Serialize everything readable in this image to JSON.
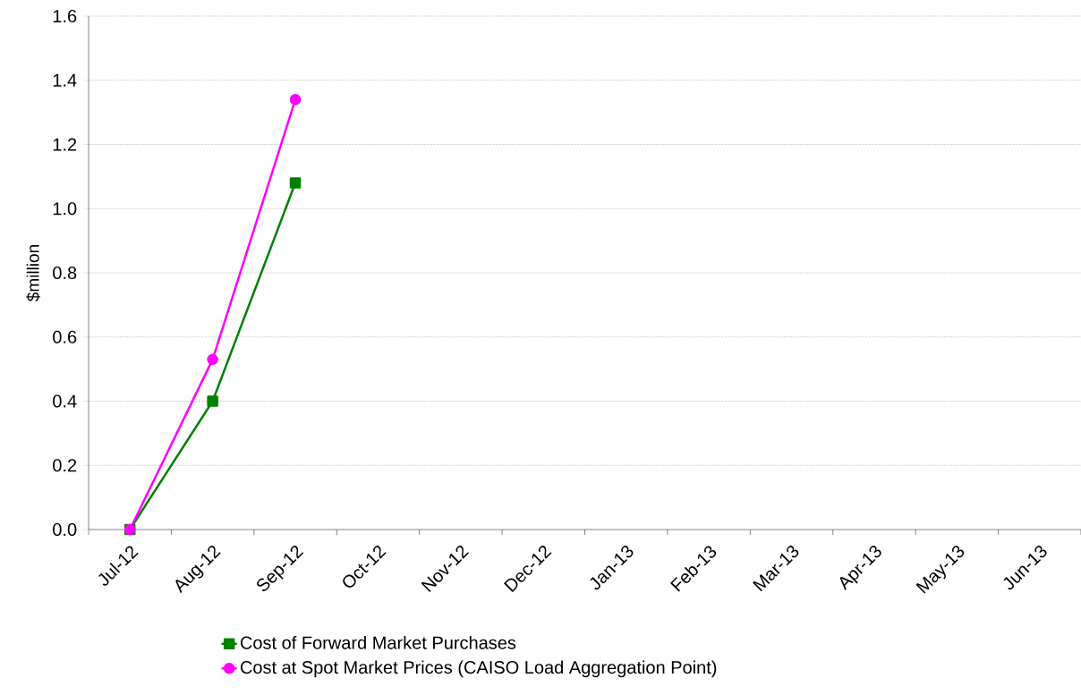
{
  "chart_data": {
    "type": "line",
    "categories": [
      "Jul-12",
      "Aug-12",
      "Sep-12",
      "Oct-12",
      "Nov-12",
      "Dec-12",
      "Jan-13",
      "Feb-13",
      "Mar-13",
      "Apr-13",
      "May-13",
      "Jun-13"
    ],
    "series": [
      {
        "name": "Cost of Forward Market Purchases",
        "color": "#008000",
        "marker": "square",
        "values": [
          0.0,
          0.4,
          1.08,
          null,
          null,
          null,
          null,
          null,
          null,
          null,
          null,
          null
        ]
      },
      {
        "name": "Cost at Spot Market Prices (CAISO Load Aggregation Point)",
        "color": "#ff00ff",
        "marker": "circle",
        "values": [
          0.0,
          0.53,
          1.34,
          null,
          null,
          null,
          null,
          null,
          null,
          null,
          null,
          null
        ]
      }
    ],
    "ylabel": "$million",
    "ylim": [
      0,
      1.6
    ],
    "yticks": [
      {
        "value": 0,
        "label": "0.0"
      },
      0.2,
      0.4,
      0.6,
      0.8,
      {
        "value": 1,
        "label": "1.0"
      },
      1.2,
      1.4,
      1.6
    ],
    "grid": "y",
    "legend": "bottom",
    "line_style": "solid"
  }
}
